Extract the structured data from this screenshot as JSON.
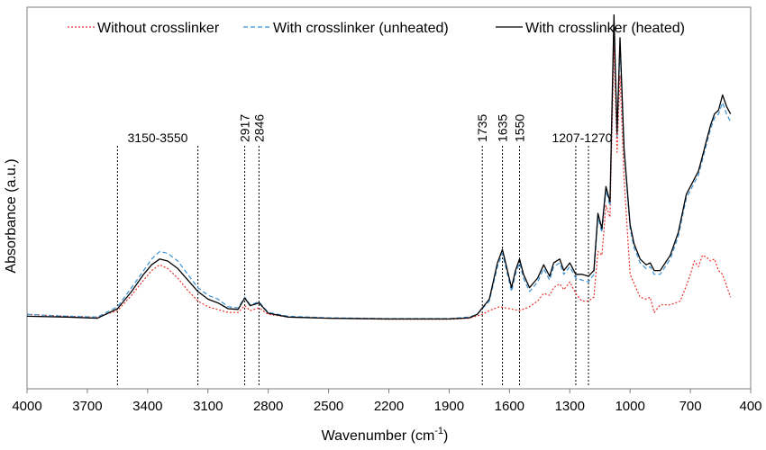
{
  "chart_data": {
    "type": "line",
    "xlabel": "Wavenumber (cm",
    "xlabel_sup": "-1",
    "xlabel_close": ")",
    "ylabel": "Absorbance (a.u.)",
    "xlim": [
      4000,
      400
    ],
    "ylim": [
      0,
      1
    ],
    "x_reversed": true,
    "y_ticks_shown": false,
    "grid": false,
    "legend_position": "top",
    "x_ticks": [
      4000,
      3700,
      3400,
      3100,
      2800,
      2500,
      2200,
      1900,
      1600,
      1300,
      1000,
      700,
      400
    ],
    "x_tick_labels": [
      "4000",
      "3700",
      "3400",
      "3100",
      "2800",
      "2500",
      "2200",
      "1900",
      "1600",
      "1300",
      "1000",
      "700",
      "400"
    ],
    "annotations": [
      {
        "label": "3150-3550",
        "lines": [
          3550,
          3150
        ],
        "style": "range"
      },
      {
        "label": "2917",
        "lines": [
          2917
        ],
        "style": "vertical"
      },
      {
        "label": "2846",
        "lines": [
          2846
        ],
        "style": "vertical"
      },
      {
        "label": "1735",
        "lines": [
          1735
        ],
        "style": "vertical"
      },
      {
        "label": "1635",
        "lines": [
          1635
        ],
        "style": "vertical"
      },
      {
        "label": "1550",
        "lines": [
          1550
        ],
        "style": "vertical"
      },
      {
        "label": "1207-1270",
        "lines": [
          1270,
          1207
        ],
        "style": "range"
      }
    ],
    "series": [
      {
        "name": "Without crosslinker",
        "color": "#e8302a",
        "dash": "dotted",
        "points": [
          [
            4000,
            0.195
          ],
          [
            3800,
            0.19
          ],
          [
            3650,
            0.188
          ],
          [
            3550,
            0.205
          ],
          [
            3480,
            0.245
          ],
          [
            3420,
            0.285
          ],
          [
            3380,
            0.31
          ],
          [
            3340,
            0.325
          ],
          [
            3300,
            0.315
          ],
          [
            3250,
            0.29
          ],
          [
            3200,
            0.258
          ],
          [
            3150,
            0.23
          ],
          [
            3100,
            0.215
          ],
          [
            3000,
            0.2
          ],
          [
            2950,
            0.2
          ],
          [
            2917,
            0.218
          ],
          [
            2890,
            0.205
          ],
          [
            2846,
            0.212
          ],
          [
            2800,
            0.195
          ],
          [
            2700,
            0.188
          ],
          [
            2500,
            0.185
          ],
          [
            2200,
            0.182
          ],
          [
            1900,
            0.182
          ],
          [
            1800,
            0.185
          ],
          [
            1735,
            0.195
          ],
          [
            1700,
            0.205
          ],
          [
            1650,
            0.215
          ],
          [
            1600,
            0.21
          ],
          [
            1550,
            0.205
          ],
          [
            1500,
            0.215
          ],
          [
            1460,
            0.23
          ],
          [
            1430,
            0.25
          ],
          [
            1400,
            0.245
          ],
          [
            1380,
            0.265
          ],
          [
            1350,
            0.275
          ],
          [
            1330,
            0.26
          ],
          [
            1300,
            0.28
          ],
          [
            1270,
            0.25
          ],
          [
            1240,
            0.23
          ],
          [
            1207,
            0.23
          ],
          [
            1180,
            0.24
          ],
          [
            1160,
            0.36
          ],
          [
            1140,
            0.35
          ],
          [
            1120,
            0.48
          ],
          [
            1100,
            0.45
          ],
          [
            1080,
            0.9
          ],
          [
            1065,
            0.62
          ],
          [
            1050,
            0.82
          ],
          [
            1030,
            0.55
          ],
          [
            1000,
            0.3
          ],
          [
            950,
            0.24
          ],
          [
            920,
            0.235
          ],
          [
            900,
            0.24
          ],
          [
            880,
            0.2
          ],
          [
            850,
            0.22
          ],
          [
            800,
            0.22
          ],
          [
            750,
            0.23
          ],
          [
            720,
            0.27
          ],
          [
            700,
            0.3
          ],
          [
            680,
            0.335
          ],
          [
            660,
            0.32
          ],
          [
            640,
            0.35
          ],
          [
            620,
            0.345
          ],
          [
            600,
            0.335
          ],
          [
            580,
            0.34
          ],
          [
            560,
            0.31
          ],
          [
            540,
            0.3
          ],
          [
            520,
            0.27
          ],
          [
            500,
            0.24
          ]
        ]
      },
      {
        "name": "With crosslinker (unheated)",
        "color": "#3a91d4",
        "dash": "dashed",
        "points": [
          [
            4000,
            0.195
          ],
          [
            3800,
            0.19
          ],
          [
            3650,
            0.188
          ],
          [
            3550,
            0.215
          ],
          [
            3480,
            0.265
          ],
          [
            3420,
            0.31
          ],
          [
            3380,
            0.34
          ],
          [
            3340,
            0.36
          ],
          [
            3300,
            0.355
          ],
          [
            3250,
            0.335
          ],
          [
            3200,
            0.3
          ],
          [
            3150,
            0.265
          ],
          [
            3100,
            0.245
          ],
          [
            3050,
            0.235
          ],
          [
            3000,
            0.215
          ],
          [
            2950,
            0.212
          ],
          [
            2917,
            0.24
          ],
          [
            2890,
            0.22
          ],
          [
            2846,
            0.228
          ],
          [
            2800,
            0.2
          ],
          [
            2700,
            0.19
          ],
          [
            2500,
            0.186
          ],
          [
            2200,
            0.184
          ],
          [
            1900,
            0.184
          ],
          [
            1800,
            0.188
          ],
          [
            1760,
            0.195
          ],
          [
            1735,
            0.21
          ],
          [
            1700,
            0.23
          ],
          [
            1660,
            0.32
          ],
          [
            1635,
            0.355
          ],
          [
            1610,
            0.3
          ],
          [
            1590,
            0.255
          ],
          [
            1570,
            0.3
          ],
          [
            1550,
            0.33
          ],
          [
            1530,
            0.29
          ],
          [
            1500,
            0.255
          ],
          [
            1460,
            0.28
          ],
          [
            1430,
            0.315
          ],
          [
            1400,
            0.285
          ],
          [
            1380,
            0.32
          ],
          [
            1350,
            0.33
          ],
          [
            1330,
            0.3
          ],
          [
            1300,
            0.32
          ],
          [
            1270,
            0.29
          ],
          [
            1240,
            0.285
          ],
          [
            1207,
            0.28
          ],
          [
            1180,
            0.3
          ],
          [
            1160,
            0.45
          ],
          [
            1140,
            0.41
          ],
          [
            1120,
            0.52
          ],
          [
            1100,
            0.48
          ],
          [
            1080,
            0.97
          ],
          [
            1065,
            0.66
          ],
          [
            1050,
            0.9
          ],
          [
            1030,
            0.62
          ],
          [
            1000,
            0.42
          ],
          [
            980,
            0.37
          ],
          [
            950,
            0.33
          ],
          [
            920,
            0.315
          ],
          [
            900,
            0.32
          ],
          [
            880,
            0.3
          ],
          [
            850,
            0.3
          ],
          [
            800,
            0.34
          ],
          [
            760,
            0.4
          ],
          [
            720,
            0.5
          ],
          [
            700,
            0.52
          ],
          [
            680,
            0.54
          ],
          [
            660,
            0.56
          ],
          [
            640,
            0.6
          ],
          [
            620,
            0.64
          ],
          [
            600,
            0.68
          ],
          [
            580,
            0.71
          ],
          [
            560,
            0.72
          ],
          [
            540,
            0.75
          ],
          [
            520,
            0.72
          ],
          [
            500,
            0.7
          ]
        ]
      },
      {
        "name": "With crosslinker (heated)",
        "color": "#000000",
        "dash": "solid",
        "points": [
          [
            4000,
            0.19
          ],
          [
            3800,
            0.188
          ],
          [
            3650,
            0.185
          ],
          [
            3550,
            0.21
          ],
          [
            3480,
            0.255
          ],
          [
            3420,
            0.3
          ],
          [
            3380,
            0.325
          ],
          [
            3340,
            0.34
          ],
          [
            3300,
            0.335
          ],
          [
            3250,
            0.315
          ],
          [
            3200,
            0.285
          ],
          [
            3150,
            0.255
          ],
          [
            3100,
            0.235
          ],
          [
            3050,
            0.225
          ],
          [
            3000,
            0.21
          ],
          [
            2950,
            0.208
          ],
          [
            2917,
            0.238
          ],
          [
            2890,
            0.218
          ],
          [
            2846,
            0.225
          ],
          [
            2800,
            0.198
          ],
          [
            2700,
            0.188
          ],
          [
            2500,
            0.185
          ],
          [
            2200,
            0.183
          ],
          [
            1900,
            0.183
          ],
          [
            1800,
            0.186
          ],
          [
            1760,
            0.195
          ],
          [
            1735,
            0.212
          ],
          [
            1700,
            0.235
          ],
          [
            1660,
            0.33
          ],
          [
            1635,
            0.365
          ],
          [
            1610,
            0.31
          ],
          [
            1590,
            0.265
          ],
          [
            1570,
            0.31
          ],
          [
            1550,
            0.34
          ],
          [
            1530,
            0.3
          ],
          [
            1500,
            0.265
          ],
          [
            1460,
            0.29
          ],
          [
            1430,
            0.325
          ],
          [
            1400,
            0.295
          ],
          [
            1380,
            0.33
          ],
          [
            1350,
            0.34
          ],
          [
            1330,
            0.31
          ],
          [
            1300,
            0.33
          ],
          [
            1270,
            0.3
          ],
          [
            1240,
            0.3
          ],
          [
            1207,
            0.295
          ],
          [
            1180,
            0.31
          ],
          [
            1160,
            0.46
          ],
          [
            1140,
            0.42
          ],
          [
            1120,
            0.53
          ],
          [
            1100,
            0.49
          ],
          [
            1080,
            0.98
          ],
          [
            1065,
            0.67
          ],
          [
            1050,
            0.92
          ],
          [
            1030,
            0.63
          ],
          [
            1000,
            0.43
          ],
          [
            980,
            0.38
          ],
          [
            950,
            0.34
          ],
          [
            920,
            0.325
          ],
          [
            900,
            0.33
          ],
          [
            880,
            0.31
          ],
          [
            850,
            0.31
          ],
          [
            800,
            0.35
          ],
          [
            760,
            0.41
          ],
          [
            720,
            0.51
          ],
          [
            700,
            0.53
          ],
          [
            680,
            0.55
          ],
          [
            660,
            0.57
          ],
          [
            640,
            0.61
          ],
          [
            620,
            0.65
          ],
          [
            600,
            0.69
          ],
          [
            580,
            0.72
          ],
          [
            560,
            0.73
          ],
          [
            540,
            0.77
          ],
          [
            520,
            0.74
          ],
          [
            500,
            0.72
          ]
        ]
      }
    ]
  }
}
